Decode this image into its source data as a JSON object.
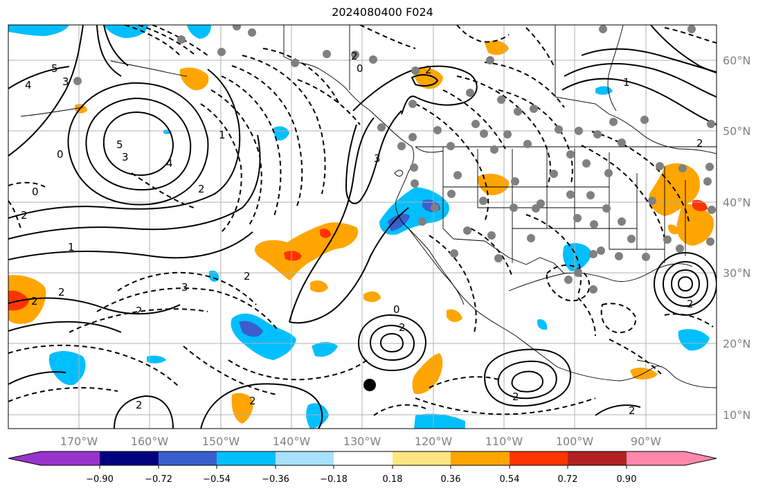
{
  "title": "2024080400 F024",
  "map": {
    "lon_range": [
      -180,
      -80
    ],
    "lat_range": [
      8,
      65
    ],
    "lon_ticks": [
      "170°W",
      "160°W",
      "150°W",
      "140°W",
      "130°W",
      "120°W",
      "110°W",
      "100°W",
      "90°W"
    ],
    "lat_ticks": [
      "60°N",
      "50°N",
      "40°N",
      "30°N",
      "20°N",
      "10°N"
    ],
    "grid": true,
    "contour_labels": [
      "5",
      "4",
      "3",
      "2",
      "1",
      "0",
      "3",
      "4",
      "5",
      "2",
      "2",
      "2",
      "2",
      "3",
      "2",
      "1",
      "2",
      "2",
      "2",
      "0",
      "2",
      "2",
      "2",
      "1",
      "0",
      "2",
      "3",
      "2",
      "0",
      "2"
    ]
  },
  "colorbar": {
    "tick_labels": [
      "−0.90",
      "−0.72",
      "−0.54",
      "−0.36",
      "−0.18",
      "0.18",
      "0.36",
      "0.54",
      "0.72",
      "0.90"
    ],
    "colors": [
      "#9933cc",
      "#000080",
      "#3a5fcd",
      "#00bfff",
      "#a8e0ff",
      "#ffffff",
      "#ffe680",
      "#ffa500",
      "#ff3300",
      "#b22222",
      "#ff88aa"
    ]
  }
}
